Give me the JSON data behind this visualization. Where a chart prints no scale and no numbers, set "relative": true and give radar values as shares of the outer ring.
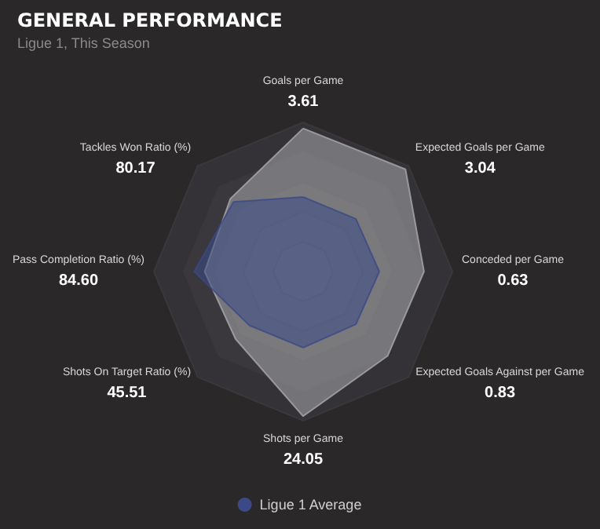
{
  "chart_data": {
    "type": "radar",
    "title": "GENERAL PERFORMANCE",
    "subtitle": "Ligue 1, This Season",
    "categories": [
      "Goals per Game",
      "Expected Goals per Game",
      "Conceded per Game",
      "Expected Goals Against per Game",
      "Shots per Game",
      "Shots On Target Ratio (%)",
      "Pass Completion Ratio (%)",
      "Tackles Won Ratio (%)"
    ],
    "relative": true,
    "legend": "bottom",
    "annotations": [
      {
        "text": "3.61",
        "x": "Goals per Game"
      },
      {
        "text": "3.04",
        "x": "Expected Goals per Game"
      },
      {
        "text": "0.63",
        "x": "Conceded per Game"
      },
      {
        "text": "0.83",
        "x": "Expected Goals Against per Game"
      },
      {
        "text": "24.05",
        "x": "Shots per Game"
      },
      {
        "text": "45.51",
        "x": "Shots On Target Ratio (%)"
      },
      {
        "text": "84.60",
        "x": "Pass Completion Ratio (%)"
      },
      {
        "text": "80.17",
        "x": "Tackles Won Ratio (%)"
      }
    ],
    "series": [
      {
        "color": "#a9a9ad",
        "values": [
          0.96,
          0.97,
          0.81,
          0.8,
          0.97,
          0.64,
          0.66,
          0.69
        ]
      },
      {
        "name": "Ligue 1 Average",
        "color": "#3b4a86",
        "values": [
          0.5,
          0.5,
          0.51,
          0.5,
          0.51,
          0.51,
          0.73,
          0.66
        ]
      }
    ]
  }
}
